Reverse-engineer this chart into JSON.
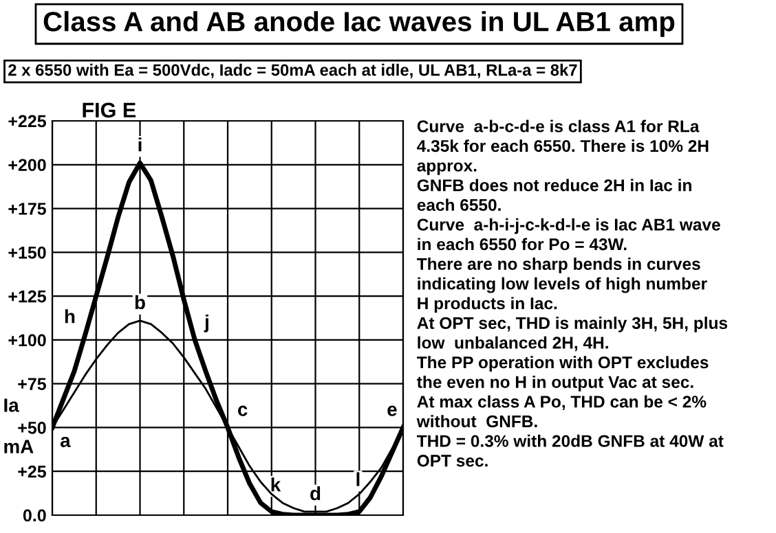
{
  "chart_data": {
    "type": "line",
    "title": "Class A and AB anode Iac waves in UL AB1 amp",
    "subtitle": "2 x 6550 with Ea = 500Vdc, Iadc = 50mA each at idle, UL AB1, RLa-a = 8k7",
    "ylabel": "Ia\nmA",
    "categories": [
      null,
      null,
      null,
      null,
      null,
      null,
      null,
      null,
      null,
      null,
      null,
      null,
      null,
      null,
      null,
      null,
      null,
      null,
      null,
      null,
      null,
      null,
      null,
      null,
      null,
      null,
      null,
      null,
      null,
      null,
      null,
      null,
      null
    ],
    "ylim": [
      0,
      225
    ],
    "yticks": [
      {
        "value": 0,
        "label": "0.0"
      },
      {
        "value": 25,
        "label": "+25"
      },
      {
        "value": 50,
        "label": "+50"
      },
      {
        "value": 75,
        "label": "+75"
      },
      {
        "value": 100,
        "label": "+100"
      },
      {
        "value": 125,
        "label": "+125"
      },
      {
        "value": 150,
        "label": "+150"
      },
      {
        "value": 175,
        "label": "+175"
      },
      {
        "value": 200,
        "label": "+200"
      },
      {
        "value": 225,
        "label": "+225"
      }
    ],
    "tick_labels": "y",
    "grid": true,
    "marker": "none",
    "line_style": "solid",
    "series": [
      {
        "color": "#000000",
        "values": [
          50,
          60,
          70,
          80,
          89,
          97,
          104,
          109,
          111,
          109,
          104,
          98,
          90,
          81,
          72,
          61,
          50,
          39,
          28,
          19,
          12,
          7,
          4,
          2,
          2,
          2,
          4,
          7,
          12,
          19,
          27,
          38,
          50
        ],
        "value_labels": [
          "a",
          null,
          null,
          null,
          null,
          null,
          null,
          null,
          "b",
          null,
          null,
          null,
          null,
          null,
          null,
          null,
          "c",
          null,
          null,
          null,
          null,
          null,
          null,
          null,
          "d",
          null,
          null,
          null,
          null,
          null,
          null,
          null,
          "e"
        ]
      },
      {
        "color": "#000000",
        "values": [
          50,
          66,
          82,
          103,
          125,
          147,
          170,
          190,
          201,
          191,
          170,
          148,
          123,
          100,
          82,
          65,
          50,
          33,
          18,
          7,
          2,
          0.5,
          0,
          0,
          0,
          0,
          0,
          0.5,
          2,
          10,
          22,
          36,
          50
        ],
        "value_labels": [
          null,
          null,
          null,
          "h",
          null,
          null,
          null,
          null,
          "i",
          null,
          null,
          null,
          null,
          "j",
          null,
          null,
          null,
          null,
          null,
          "k",
          null,
          null,
          null,
          null,
          null,
          null,
          null,
          null,
          null,
          "l",
          null,
          null,
          null
        ]
      }
    ],
    "annotations": [
      "FIG E",
      "Curve  a-b-c-d-e is class A1 for RLa\n4.35k for each 6550. There is 10% 2H\napprox.\nGNFB does not reduce 2H in Iac in\neach 6550.\nCurve  a-h-i-j-c-k-d-l-e is Iac AB1 wave\nin each 6550 for Po = 43W.\nThere are no sharp bends in curves\nindicating low levels of high number\nH products in Iac.\nAt OPT sec, THD is mainly 3H, 5H, plus\nlow  unbalanced 2H, 4H.\nThe PP operation with OPT excludes\nthe even no H in output Vac at sec.\nAt max class A Po, THD can be < 2%\nwithout  GNFB.\nTHD = 0.3% with 20dB GNFB at 40W at\nOPT sec."
    ]
  }
}
